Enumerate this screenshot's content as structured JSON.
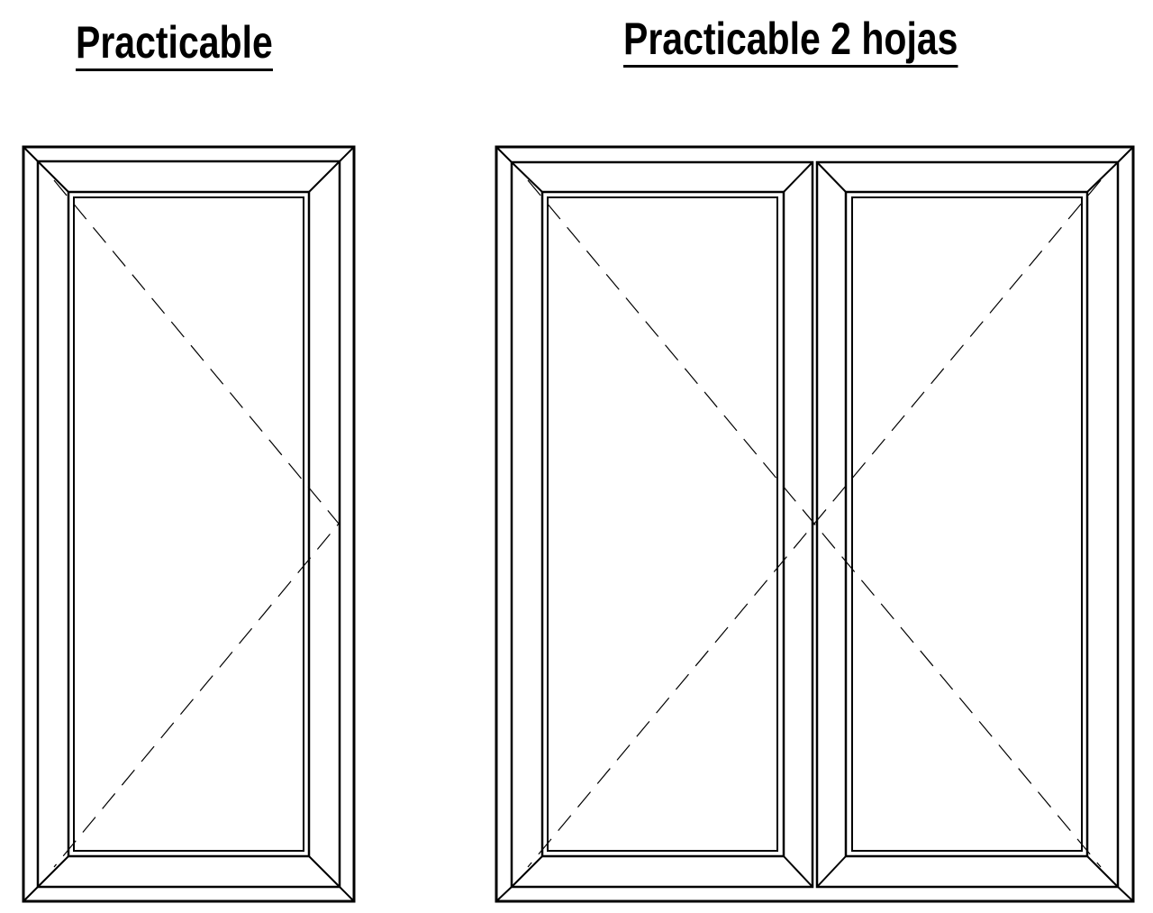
{
  "labels": {
    "single": "Practicable",
    "double": "Practicable 2 hojas"
  },
  "colors": {
    "line": "#000000",
    "background": "#ffffff"
  }
}
